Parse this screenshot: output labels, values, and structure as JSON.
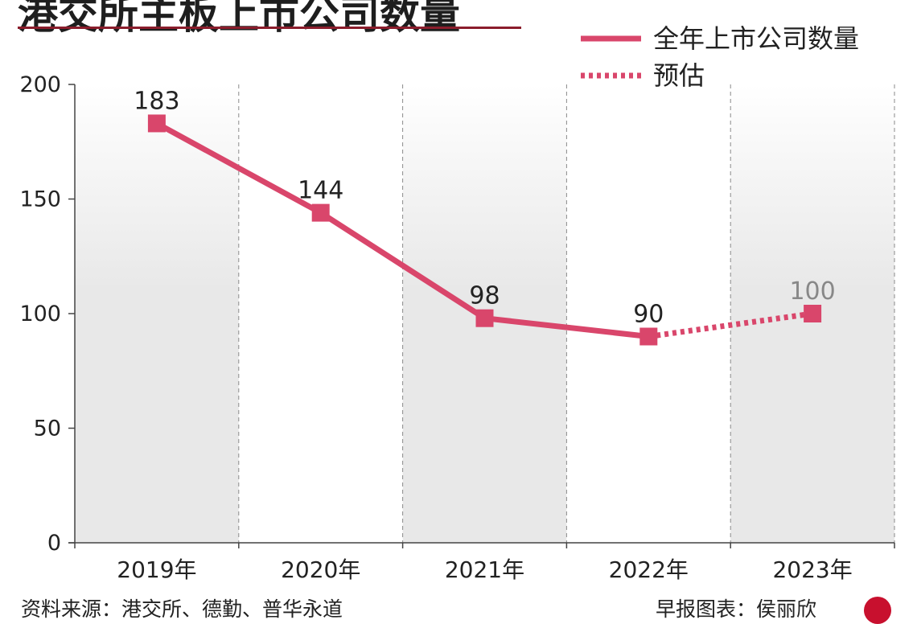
{
  "chart_data": {
    "type": "line",
    "title": "港交所主板上市公司数量",
    "categories": [
      "2019年",
      "2020年",
      "2021年",
      "2022年",
      "2023年"
    ],
    "series": [
      {
        "name": "全年上市公司数量",
        "style": "solid",
        "x": [
          "2019年",
          "2020年",
          "2021年",
          "2022年"
        ],
        "values": [
          183,
          144,
          98,
          90
        ]
      },
      {
        "name": "预估",
        "style": "dotted",
        "x": [
          "2022年",
          "2023年"
        ],
        "values": [
          90,
          100
        ]
      }
    ],
    "data_labels": [
      "183",
      "144",
      "98",
      "90",
      "100"
    ],
    "yticks": [
      0,
      50,
      100,
      150,
      200
    ],
    "ylim": [
      0,
      200
    ],
    "xlabel": "",
    "ylabel": "",
    "grid": "vertical dashed separators between years",
    "legend_position": "top-right",
    "colors": {
      "line": "#d9466b",
      "estimate_label": "#888888",
      "band": "#e8e8e8",
      "title_rule": "#8b1d2c",
      "logo": "#c8102e"
    }
  },
  "footer": {
    "source": "资料来源：港交所、德勤、普华永道",
    "credit": "早报图表：侯丽欣"
  },
  "logo_icon": "zaobao-logo-icon"
}
